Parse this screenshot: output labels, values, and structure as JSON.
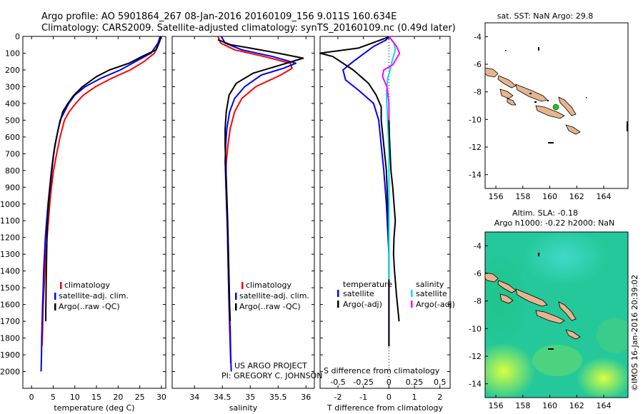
{
  "header": {
    "line1": "Argo profile: AO 5901864_267 08-Jan-2016 20160109_156 9.011S 160.634E",
    "line2": "Climatology: CARS2009. Satellite-adjusted climatology: synTS_20160109.nc (0.49d later)"
  },
  "colors": {
    "climatology": "#ff0000",
    "satellite": "#0000ff",
    "argo": "#000000",
    "sal_satellite": "#00e0e0",
    "sal_argo": "#ff00ff",
    "land": "#e8b48e"
  },
  "chart_data": [
    {
      "id": "temp",
      "type": "line",
      "xlabel": "temperature (deg C)",
      "ylabel": "",
      "xlim": [
        -2,
        31
      ],
      "ylim": [
        2100,
        0
      ],
      "xticks": [
        0,
        5,
        10,
        15,
        20,
        25,
        30
      ],
      "yticks": [
        0,
        100,
        200,
        300,
        400,
        500,
        600,
        700,
        800,
        900,
        1000,
        1100,
        1200,
        1300,
        1400,
        1500,
        1600,
        1700,
        1800,
        1900,
        2000
      ],
      "legend": [
        "climatology",
        "satellite-adj. clim.",
        "Argo(..raw -QC)"
      ],
      "series": [
        {
          "name": "climatology",
          "color": "#ff0000",
          "x": [
            29.8,
            29.4,
            28.4,
            26.0,
            22.8,
            18.5,
            14.8,
            12.0,
            10.2,
            8.7,
            7.6,
            6.6,
            5.8,
            5.1,
            4.6,
            4.2,
            3.9,
            3.6,
            3.3,
            3.1,
            2.9,
            2.7,
            2.6,
            2.5,
            2.4
          ],
          "y": [
            0,
            40,
            100,
            150,
            200,
            250,
            300,
            350,
            400,
            450,
            500,
            600,
            700,
            800,
            900,
            1000,
            1100,
            1200,
            1300,
            1400,
            1500,
            1600,
            1700,
            1800,
            1850
          ]
        },
        {
          "name": "satellite-adj. clim.",
          "color": "#0000ff",
          "x": [
            29.7,
            29.2,
            27.6,
            24.0,
            20.5,
            16.0,
            12.4,
            10.0,
            8.6,
            7.6,
            6.6,
            5.8,
            5.1,
            4.6,
            4.2,
            3.8,
            3.5,
            3.2,
            3.0,
            2.8,
            2.7,
            2.55,
            2.45,
            2.35,
            2.3,
            2.2
          ],
          "y": [
            0,
            40,
            100,
            150,
            200,
            250,
            300,
            350,
            400,
            450,
            500,
            600,
            700,
            800,
            900,
            1000,
            1100,
            1200,
            1300,
            1400,
            1500,
            1600,
            1700,
            1800,
            1900,
            2000
          ]
        },
        {
          "name": "Argo(..raw -QC)",
          "color": "#000000",
          "x": [
            29.9,
            29.6,
            28.8,
            25.5,
            22.5,
            18.0,
            15.0,
            11.8,
            9.8,
            8.4,
            7.2,
            6.2,
            5.4,
            4.9,
            4.5,
            4.1,
            3.8,
            3.6,
            3.5,
            3.4,
            3.35,
            3.3,
            3.3
          ],
          "y": [
            0,
            30,
            80,
            120,
            160,
            200,
            240,
            300,
            350,
            400,
            450,
            550,
            650,
            750,
            850,
            950,
            1050,
            1150,
            1300,
            1450,
            1550,
            1650,
            1700
          ]
        }
      ]
    },
    {
      "id": "sal",
      "type": "line",
      "xlabel": "salinity",
      "ylabel": "",
      "xlim": [
        33.6,
        36.15
      ],
      "ylim": [
        2100,
        0
      ],
      "xticks": [
        34,
        34.5,
        35,
        35.5,
        36
      ],
      "xtick_labels": [
        "34",
        "34.5",
        "35",
        "35.5",
        "36"
      ],
      "legend": [
        "climatology",
        "satellite-adj. clim.",
        "Argo(..raw -QC)"
      ],
      "annotation": [
        "US ARGO PROJECT",
        "PI: GREGORY C. JOHNSON"
      ],
      "series": [
        {
          "name": "climatology",
          "color": "#ff0000",
          "x": [
            34.42,
            34.47,
            34.72,
            35.25,
            35.72,
            35.75,
            35.55,
            35.1,
            34.85,
            34.72,
            34.64,
            34.6,
            34.57,
            34.56,
            34.57,
            34.58,
            34.59,
            34.6,
            34.61,
            34.62,
            34.63,
            34.64,
            34.65
          ],
          "y": [
            0,
            40,
            80,
            120,
            160,
            190,
            230,
            300,
            370,
            450,
            550,
            650,
            750,
            850,
            950,
            1050,
            1150,
            1300,
            1450,
            1600,
            1750,
            1850,
            1950
          ]
        },
        {
          "name": "satellite-adj. clim.",
          "color": "#0000ff",
          "x": [
            34.48,
            34.55,
            34.85,
            35.4,
            35.82,
            35.6,
            35.2,
            34.9,
            34.72,
            34.63,
            34.58,
            34.56,
            34.55,
            34.56,
            34.57,
            34.58,
            34.59,
            34.6,
            34.61,
            34.62,
            34.64,
            34.65,
            34.66
          ],
          "y": [
            0,
            40,
            80,
            120,
            160,
            190,
            230,
            300,
            370,
            450,
            550,
            650,
            750,
            850,
            950,
            1050,
            1150,
            1300,
            1450,
            1600,
            1750,
            1900,
            2000
          ]
        },
        {
          "name": "Argo(..raw -QC)",
          "color": "#000000",
          "x": [
            34.42,
            34.65,
            35.0,
            35.5,
            35.95,
            35.55,
            35.05,
            34.75,
            34.62,
            34.57,
            34.55,
            34.55,
            34.56,
            34.57,
            34.58,
            34.59,
            34.6,
            34.61,
            34.62,
            34.63,
            34.64
          ],
          "y": [
            20,
            50,
            70,
            100,
            130,
            170,
            220,
            280,
            350,
            450,
            550,
            650,
            750,
            850,
            950,
            1050,
            1150,
            1300,
            1450,
            1600,
            1700
          ]
        }
      ]
    },
    {
      "id": "diff",
      "type": "line",
      "xlabel": "T difference from climatology",
      "xlabel_top": "S difference from climatology",
      "xlim": [
        -2.7,
        2.4
      ],
      "ylim": [
        2100,
        0
      ],
      "xticks": [
        -2,
        -1,
        0,
        1,
        2
      ],
      "s_ticks": [
        -0.5,
        -0.25,
        0,
        0.25,
        0.5
      ],
      "s_tick_labels": [
        "-0.5",
        "-0.25",
        "0",
        "0.25",
        "0.5"
      ],
      "zero_line": true,
      "legend_left": {
        "title": "temperature",
        "items": [
          "satellite",
          "Argo(-adj)"
        ]
      },
      "legend_right": {
        "title": "salinity",
        "items": [
          "satellite",
          "Argo(-adj)"
        ]
      },
      "series": [
        {
          "name": "T satellite",
          "color": "#0000ff",
          "x": [
            0.0,
            -0.1,
            -0.6,
            -1.4,
            -1.8,
            -1.7,
            -1.2,
            -0.6,
            -0.4,
            -0.3,
            -0.2,
            -0.1,
            0.0,
            0.0
          ],
          "y": [
            0,
            20,
            60,
            150,
            200,
            260,
            320,
            400,
            500,
            650,
            800,
            1000,
            1300,
            1850
          ]
        },
        {
          "name": "T Argo(-adj)",
          "color": "#000000",
          "x": [
            0.05,
            -0.3,
            -1.2,
            -2.7,
            -2.2,
            -1.4,
            -0.8,
            -0.5,
            -0.3,
            -0.3,
            -0.2,
            -0.1,
            -0.05,
            0.0,
            0.0
          ],
          "y": [
            0,
            20,
            70,
            100,
            120,
            200,
            280,
            350,
            420,
            500,
            650,
            800,
            1000,
            1300,
            1850
          ]
        },
        {
          "name": "S satellite",
          "color": "#00e0e0",
          "x": [
            0.0,
            0.2,
            0.25,
            0.12,
            0.05,
            -0.05,
            -0.1,
            -0.05,
            0.0,
            0.0,
            0.0
          ],
          "y": [
            0,
            40,
            80,
            150,
            200,
            250,
            350,
            500,
            700,
            1000,
            1450
          ]
        },
        {
          "name": "S Argo(-adj)",
          "color": "#ff00ff",
          "x": [
            0.0,
            0.3,
            0.42,
            0.15,
            -0.2,
            -0.25,
            -0.08,
            0.0,
            0.0
          ],
          "y": [
            0,
            60,
            100,
            170,
            200,
            240,
            300,
            400,
            550
          ]
        },
        {
          "name": "S Argo tail",
          "color": "#000000",
          "x": [
            0.0,
            0.02,
            0.05,
            0.08,
            0.15,
            0.2,
            0.25,
            0.2,
            0.18,
            0.22,
            0.3,
            0.4
          ],
          "y": [
            500,
            600,
            700,
            800,
            900,
            1000,
            1100,
            1200,
            1300,
            1400,
            1550,
            1700
          ]
        }
      ]
    }
  ],
  "map_top": {
    "title": "sat. SST: NaN Argo: 29.8",
    "xticks": [
      156,
      158,
      160,
      162,
      164
    ],
    "yticks": [
      -4,
      -6,
      -8,
      -10,
      -12,
      -14
    ],
    "xlim": [
      155.2,
      165.8
    ],
    "ylim": [
      -15,
      -3
    ],
    "argo_position": {
      "lon": 160.634,
      "lat": -9.011
    }
  },
  "map_bottom": {
    "title_line1": "Altim. SLA: -0.18",
    "title_line2": "Argo h1000: -0.22 h2000: NaN",
    "xticks": [
      156,
      158,
      160,
      162,
      164
    ],
    "yticks": [
      -4,
      -6,
      -8,
      -10,
      -12,
      -14
    ],
    "xlim": [
      155.2,
      165.8
    ],
    "ylim": [
      -15,
      -3
    ]
  },
  "watermark": "©IMOS 16-Jan-2016 20:39:02"
}
